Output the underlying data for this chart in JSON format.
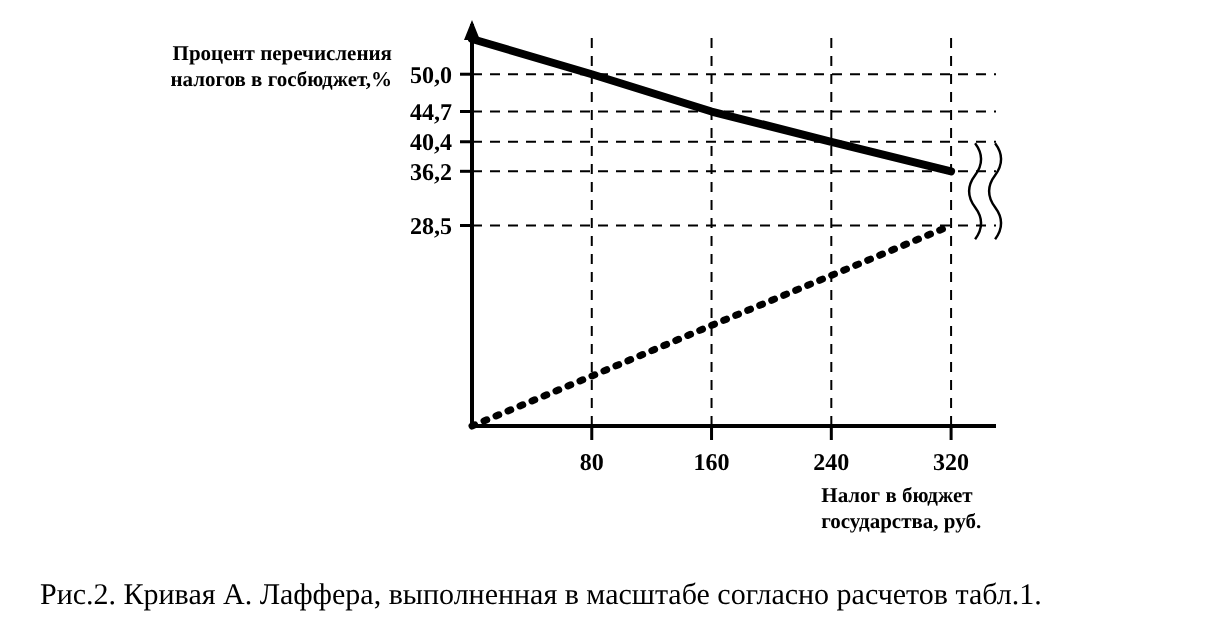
{
  "chart_data": {
    "type": "line",
    "title": "Рис.2. Кривая А. Лаффера, выполненная в масштабе согласно расчетов табл.1.",
    "ylabel": "Процент перечисления налогов в госбюджет,%",
    "xlabel": "Налог в бюджет государства, руб.",
    "xlim": [
      0,
      350
    ],
    "xticks": [
      80,
      160,
      240,
      320
    ],
    "ylim": [
      0,
      56
    ],
    "yticks": [
      {
        "value": 50.0,
        "label": "50,0"
      },
      {
        "value": 44.7,
        "label": "44,7"
      },
      {
        "value": 40.4,
        "label": "40,4"
      },
      {
        "value": 36.2,
        "label": "36,2"
      },
      {
        "value": 28.5,
        "label": "28,5"
      }
    ],
    "grid": true,
    "marker": "none",
    "series": [
      {
        "color": "#000000",
        "line_style": "solid",
        "x": [
          0,
          80,
          160,
          240,
          320
        ],
        "values": [
          55,
          50.0,
          44.7,
          40.4,
          36.2
        ]
      },
      {
        "color": "#000000",
        "line_style": "dotted",
        "x": [
          0,
          80,
          160,
          240,
          320
        ],
        "values": [
          0,
          7.1,
          14.3,
          21.4,
          28.5
        ]
      }
    ]
  }
}
